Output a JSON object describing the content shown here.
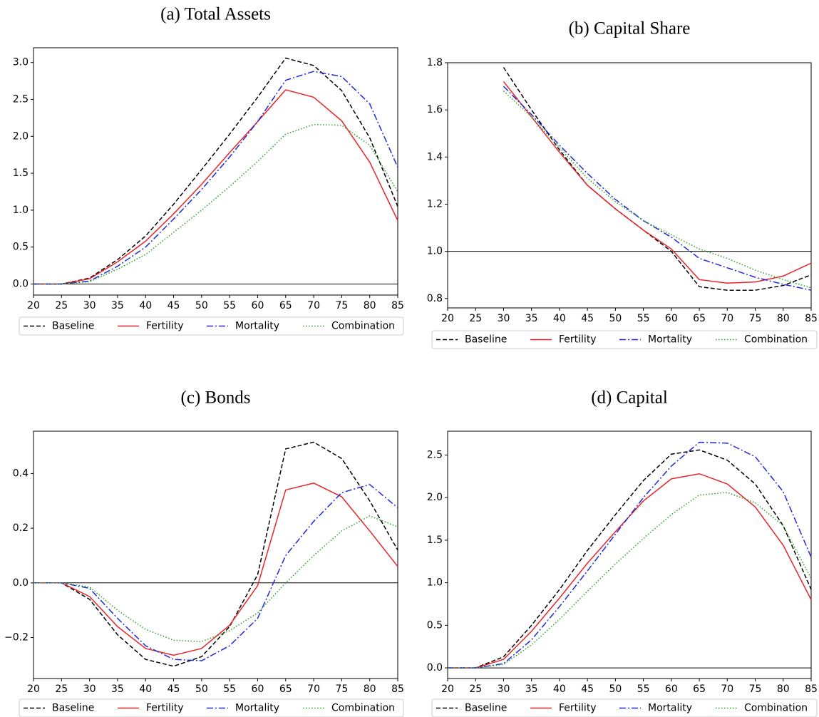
{
  "chart_data": [
    {
      "type": "line",
      "title": "(a) Total Assets",
      "legend": "below",
      "x": [
        20,
        25,
        30,
        35,
        40,
        45,
        50,
        55,
        60,
        65,
        70,
        75,
        80,
        85
      ],
      "xlim": [
        20,
        85
      ],
      "xticks": [
        20,
        25,
        30,
        35,
        40,
        45,
        50,
        55,
        60,
        65,
        70,
        75,
        80,
        85
      ],
      "ylim": [
        -0.15,
        3.2
      ],
      "yticks": [
        {
          "value": 0,
          "label": "0.0"
        },
        0.5,
        {
          "value": 1,
          "label": "1.0"
        },
        1.5,
        {
          "value": 2,
          "label": "2.0"
        },
        2.5,
        {
          "value": 3,
          "label": "3.0"
        }
      ],
      "hline": 0,
      "series": [
        {
          "name": "Baseline",
          "color": "#000000",
          "dash": "dashed",
          "values": [
            0,
            0,
            0.08,
            0.33,
            0.65,
            1.08,
            1.55,
            2.03,
            2.53,
            3.06,
            2.96,
            2.62,
            1.98,
            1.05
          ]
        },
        {
          "name": "Fertility",
          "color": "#e8262a",
          "dash": "solid",
          "values": [
            0,
            0,
            0.07,
            0.3,
            0.58,
            0.95,
            1.35,
            1.78,
            2.2,
            2.63,
            2.53,
            2.21,
            1.65,
            0.86
          ]
        },
        {
          "name": "Mortality",
          "color": "#1f2bd8",
          "dash": "dashdot",
          "values": [
            0,
            0,
            0.04,
            0.24,
            0.5,
            0.88,
            1.28,
            1.72,
            2.2,
            2.76,
            2.88,
            2.81,
            2.44,
            1.58
          ]
        },
        {
          "name": "Combination",
          "color": "#2ca02c",
          "dash": "dotted",
          "values": [
            0,
            0,
            0.03,
            0.2,
            0.4,
            0.7,
            1.0,
            1.32,
            1.66,
            2.03,
            2.16,
            2.15,
            1.88,
            1.25
          ]
        }
      ]
    },
    {
      "type": "line",
      "title": "(b) Capital Share",
      "legend": "below",
      "x": [
        20,
        25,
        30,
        35,
        40,
        45,
        50,
        55,
        60,
        65,
        70,
        75,
        80,
        85
      ],
      "xlim": [
        20,
        85
      ],
      "xticks": [
        20,
        25,
        30,
        35,
        40,
        45,
        50,
        55,
        60,
        65,
        70,
        75,
        80,
        85
      ],
      "ylim": [
        0.76,
        1.8
      ],
      "yticks": [
        0.8,
        {
          "value": 1,
          "label": "1.0"
        },
        1.2,
        1.4,
        1.6,
        1.8
      ],
      "hline": 1,
      "series": [
        {
          "name": "Baseline",
          "color": "#000000",
          "dash": "dashed",
          "values": [
            null,
            null,
            1.78,
            1.6,
            1.43,
            1.28,
            1.18,
            1.09,
            1.0,
            0.85,
            0.835,
            0.835,
            0.855,
            0.9
          ]
        },
        {
          "name": "Fertility",
          "color": "#e8262a",
          "dash": "solid",
          "values": [
            null,
            null,
            1.72,
            1.57,
            1.42,
            1.28,
            1.18,
            1.09,
            1.01,
            0.88,
            0.865,
            0.87,
            0.895,
            0.95
          ]
        },
        {
          "name": "Mortality",
          "color": "#1f2bd8",
          "dash": "dashdot",
          "values": [
            null,
            null,
            1.7,
            1.58,
            1.45,
            1.33,
            1.22,
            1.13,
            1.06,
            0.97,
            0.93,
            0.89,
            0.86,
            0.835
          ]
        },
        {
          "name": "Combination",
          "color": "#2ca02c",
          "dash": "dotted",
          "values": [
            null,
            null,
            1.68,
            1.57,
            1.44,
            1.31,
            1.21,
            1.13,
            1.07,
            1.01,
            0.97,
            0.92,
            0.88,
            0.845
          ]
        }
      ]
    },
    {
      "type": "line",
      "title": "(c) Bonds",
      "legend": "below",
      "x": [
        20,
        25,
        30,
        35,
        40,
        45,
        50,
        55,
        60,
        65,
        70,
        75,
        80,
        85
      ],
      "xlim": [
        20,
        85
      ],
      "xticks": [
        20,
        25,
        30,
        35,
        40,
        45,
        50,
        55,
        60,
        65,
        70,
        75,
        80,
        85
      ],
      "ylim": [
        -0.35,
        0.555
      ],
      "yticks": [
        {
          "value": -0.2,
          "label": "−0.2"
        },
        {
          "value": 0,
          "label": "0.0"
        },
        0.2,
        0.4
      ],
      "hline": 0,
      "series": [
        {
          "name": "Baseline",
          "color": "#000000",
          "dash": "dashed",
          "values": [
            0,
            0,
            -0.06,
            -0.19,
            -0.28,
            -0.305,
            -0.27,
            -0.16,
            0.03,
            0.49,
            0.515,
            0.455,
            0.3,
            0.12
          ]
        },
        {
          "name": "Fertility",
          "color": "#e8262a",
          "dash": "solid",
          "values": [
            0,
            0,
            -0.05,
            -0.16,
            -0.24,
            -0.265,
            -0.24,
            -0.155,
            -0.01,
            0.34,
            0.365,
            0.315,
            0.19,
            0.06
          ]
        },
        {
          "name": "Mortality",
          "color": "#1f2bd8",
          "dash": "dashdot",
          "values": [
            0,
            0,
            -0.02,
            -0.13,
            -0.23,
            -0.28,
            -0.285,
            -0.23,
            -0.13,
            0.1,
            0.225,
            0.33,
            0.36,
            0.275
          ]
        },
        {
          "name": "Combination",
          "color": "#2ca02c",
          "dash": "dotted",
          "values": [
            0,
            0,
            -0.015,
            -0.1,
            -0.17,
            -0.21,
            -0.215,
            -0.175,
            -0.11,
            0.0,
            0.1,
            0.19,
            0.245,
            0.205
          ]
        }
      ]
    },
    {
      "type": "line",
      "title": "(d) Capital",
      "legend": "below",
      "x": [
        20,
        25,
        30,
        35,
        40,
        45,
        50,
        55,
        60,
        65,
        70,
        75,
        80,
        85
      ],
      "xlim": [
        20,
        85
      ],
      "xticks": [
        20,
        25,
        30,
        35,
        40,
        45,
        50,
        55,
        60,
        65,
        70,
        75,
        80,
        85
      ],
      "ylim": [
        -0.125,
        2.78
      ],
      "yticks": [
        {
          "value": 0,
          "label": "0.0"
        },
        0.5,
        {
          "value": 1,
          "label": "1.0"
        },
        1.5,
        {
          "value": 2,
          "label": "2.0"
        },
        2.5
      ],
      "hline": 0,
      "series": [
        {
          "name": "Baseline",
          "color": "#000000",
          "dash": "dashed",
          "values": [
            0,
            0,
            0.13,
            0.5,
            0.92,
            1.38,
            1.8,
            2.2,
            2.51,
            2.56,
            2.44,
            2.16,
            1.67,
            0.92
          ]
        },
        {
          "name": "Fertility",
          "color": "#e8262a",
          "dash": "solid",
          "values": [
            0,
            0,
            0.1,
            0.43,
            0.82,
            1.23,
            1.6,
            1.96,
            2.22,
            2.28,
            2.16,
            1.89,
            1.44,
            0.8
          ]
        },
        {
          "name": "Mortality",
          "color": "#1f2bd8",
          "dash": "dashdot",
          "values": [
            0,
            0,
            0.05,
            0.33,
            0.72,
            1.14,
            1.57,
            2.0,
            2.37,
            2.65,
            2.64,
            2.48,
            2.07,
            1.3
          ]
        },
        {
          "name": "Combination",
          "color": "#2ca02c",
          "dash": "dotted",
          "values": [
            0,
            0,
            0.04,
            0.27,
            0.57,
            0.9,
            1.22,
            1.52,
            1.8,
            2.03,
            2.06,
            1.94,
            1.67,
            1.05
          ]
        }
      ]
    }
  ]
}
